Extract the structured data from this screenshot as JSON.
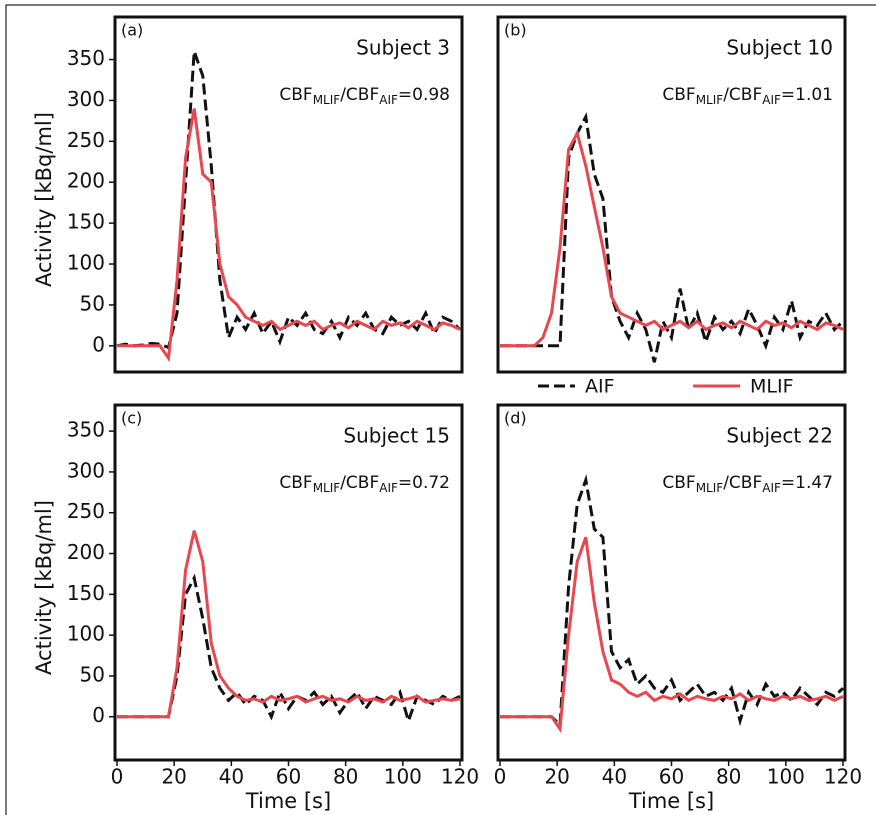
{
  "chart_data": [
    {
      "type": "line",
      "panel_label": "(a)",
      "subject": "Subject 3",
      "ratio_text": [
        "CBF",
        "MLIF",
        "/CBF",
        "AIF",
        "=0.98"
      ],
      "ylabel": "Activity [kBq/ml]",
      "x": [
        0,
        3,
        6,
        9,
        12,
        15,
        18,
        21,
        24,
        27,
        30,
        33,
        36,
        39,
        42,
        45,
        48,
        51,
        54,
        57,
        60,
        63,
        66,
        69,
        72,
        75,
        78,
        81,
        84,
        87,
        90,
        93,
        96,
        99,
        102,
        105,
        108,
        111,
        114,
        117,
        120
      ],
      "xlim": [
        -0.7,
        120.7
      ],
      "ylim": [
        -32,
        402
      ],
      "yticks": [
        0,
        50,
        100,
        150,
        200,
        250,
        300,
        350
      ],
      "series": [
        {
          "name": "AIF",
          "color": "#111111",
          "dashed": true,
          "values": [
            0,
            2,
            0,
            1,
            3,
            2,
            -2,
            40,
            200,
            360,
            330,
            220,
            80,
            10,
            35,
            20,
            40,
            15,
            30,
            5,
            35,
            25,
            40,
            20,
            15,
            30,
            10,
            35,
            25,
            40,
            20,
            15,
            35,
            25,
            30,
            20,
            40,
            15,
            35,
            30,
            20
          ]
        },
        {
          "name": "MLIF",
          "color": "#e8474f",
          "dashed": false,
          "values": [
            0,
            0,
            0,
            0,
            0,
            0,
            -15,
            80,
            230,
            290,
            210,
            200,
            100,
            60,
            50,
            35,
            30,
            25,
            30,
            20,
            25,
            30,
            25,
            30,
            20,
            25,
            28,
            22,
            30,
            25,
            20,
            30,
            25,
            28,
            22,
            30,
            25,
            20,
            28,
            25,
            20
          ]
        }
      ]
    },
    {
      "type": "line",
      "panel_label": "(b)",
      "subject": "Subject 10",
      "ratio_text": [
        "CBF",
        "MLIF",
        "/CBF",
        "AIF",
        "=1.01"
      ],
      "x": [
        0,
        3,
        6,
        9,
        12,
        15,
        18,
        21,
        24,
        27,
        30,
        33,
        36,
        39,
        42,
        45,
        48,
        51,
        54,
        57,
        60,
        63,
        66,
        69,
        72,
        75,
        78,
        81,
        84,
        87,
        90,
        93,
        96,
        99,
        102,
        105,
        108,
        111,
        114,
        117,
        120
      ],
      "xlim": [
        -0.7,
        120.7
      ],
      "ylim": [
        -32,
        402
      ],
      "series": [
        {
          "name": "AIF",
          "color": "#111111",
          "dashed": true,
          "values": [
            0,
            0,
            0,
            0,
            0,
            0,
            0,
            0,
            230,
            260,
            280,
            210,
            180,
            60,
            30,
            10,
            40,
            20,
            -20,
            30,
            10,
            70,
            20,
            40,
            5,
            35,
            20,
            30,
            15,
            45,
            25,
            0,
            35,
            20,
            55,
            10,
            30,
            25,
            40,
            20,
            30
          ]
        },
        {
          "name": "MLIF",
          "color": "#e8474f",
          "dashed": false,
          "values": [
            0,
            0,
            0,
            0,
            0,
            10,
            40,
            120,
            240,
            260,
            220,
            170,
            120,
            60,
            40,
            35,
            30,
            25,
            30,
            20,
            25,
            30,
            22,
            30,
            20,
            25,
            28,
            22,
            30,
            25,
            20,
            30,
            25,
            28,
            22,
            30,
            25,
            20,
            28,
            25,
            20
          ]
        }
      ]
    },
    {
      "type": "line",
      "panel_label": "(c)",
      "subject": "Subject 15",
      "ratio_text": [
        "CBF",
        "MLIF",
        "/CBF",
        "AIF",
        "=0.72"
      ],
      "ylabel": "Activity [kBq/ml]",
      "xlabel": "Time [s]",
      "x": [
        0,
        3,
        6,
        9,
        12,
        15,
        18,
        21,
        24,
        27,
        30,
        33,
        36,
        39,
        42,
        45,
        48,
        51,
        54,
        57,
        60,
        63,
        66,
        69,
        72,
        75,
        78,
        81,
        84,
        87,
        90,
        93,
        96,
        99,
        102,
        105,
        108,
        111,
        114,
        117,
        120
      ],
      "xlim": [
        -0.7,
        120.7
      ],
      "ylim": [
        -53,
        382
      ],
      "xticks": [
        0,
        20,
        40,
        60,
        80,
        100,
        120
      ],
      "yticks": [
        0,
        50,
        100,
        150,
        200,
        250,
        300,
        350
      ],
      "series": [
        {
          "name": "AIF",
          "color": "#111111",
          "dashed": true,
          "values": [
            0,
            0,
            0,
            0,
            0,
            0,
            0,
            50,
            150,
            170,
            120,
            60,
            35,
            20,
            30,
            15,
            25,
            20,
            0,
            30,
            10,
            25,
            20,
            30,
            15,
            25,
            5,
            20,
            30,
            10,
            25,
            20,
            15,
            30,
            -5,
            25,
            20,
            15,
            25,
            20,
            25
          ]
        },
        {
          "name": "MLIF",
          "color": "#e8474f",
          "dashed": false,
          "values": [
            0,
            0,
            0,
            0,
            0,
            0,
            0,
            60,
            180,
            228,
            190,
            90,
            50,
            35,
            25,
            20,
            22,
            18,
            25,
            20,
            22,
            25,
            18,
            22,
            25,
            20,
            22,
            18,
            25,
            20,
            22,
            18,
            25,
            20,
            22,
            25,
            18,
            20,
            22,
            20,
            22
          ]
        }
      ]
    },
    {
      "type": "line",
      "panel_label": "(d)",
      "subject": "Subject 22",
      "ratio_text": [
        "CBF",
        "MLIF",
        "/CBF",
        "AIF",
        "=1.47"
      ],
      "xlabel": "Time [s]",
      "x": [
        0,
        3,
        6,
        9,
        12,
        15,
        18,
        21,
        24,
        27,
        30,
        33,
        36,
        39,
        42,
        45,
        48,
        51,
        54,
        57,
        60,
        63,
        66,
        69,
        72,
        75,
        78,
        81,
        84,
        87,
        90,
        93,
        96,
        99,
        102,
        105,
        108,
        111,
        114,
        117,
        120
      ],
      "xlim": [
        -0.7,
        120.7
      ],
      "ylim": [
        -53,
        382
      ],
      "xticks": [
        0,
        20,
        40,
        60,
        80,
        100,
        120
      ],
      "series": [
        {
          "name": "AIF",
          "color": "#111111",
          "dashed": true,
          "values": [
            0,
            0,
            0,
            0,
            0,
            0,
            0,
            -10,
            160,
            260,
            290,
            230,
            220,
            80,
            60,
            70,
            40,
            50,
            35,
            30,
            45,
            20,
            30,
            40,
            25,
            30,
            20,
            35,
            -5,
            30,
            15,
            40,
            25,
            30,
            20,
            35,
            25,
            15,
            30,
            25,
            35
          ]
        },
        {
          "name": "MLIF",
          "color": "#e8474f",
          "dashed": false,
          "values": [
            0,
            0,
            0,
            0,
            0,
            0,
            0,
            -15,
            100,
            190,
            220,
            140,
            80,
            45,
            40,
            30,
            25,
            30,
            20,
            25,
            22,
            28,
            20,
            25,
            22,
            20,
            25,
            22,
            28,
            20,
            25,
            22,
            20,
            25,
            22,
            25,
            20,
            22,
            25,
            20,
            25
          ]
        }
      ]
    }
  ]
}
